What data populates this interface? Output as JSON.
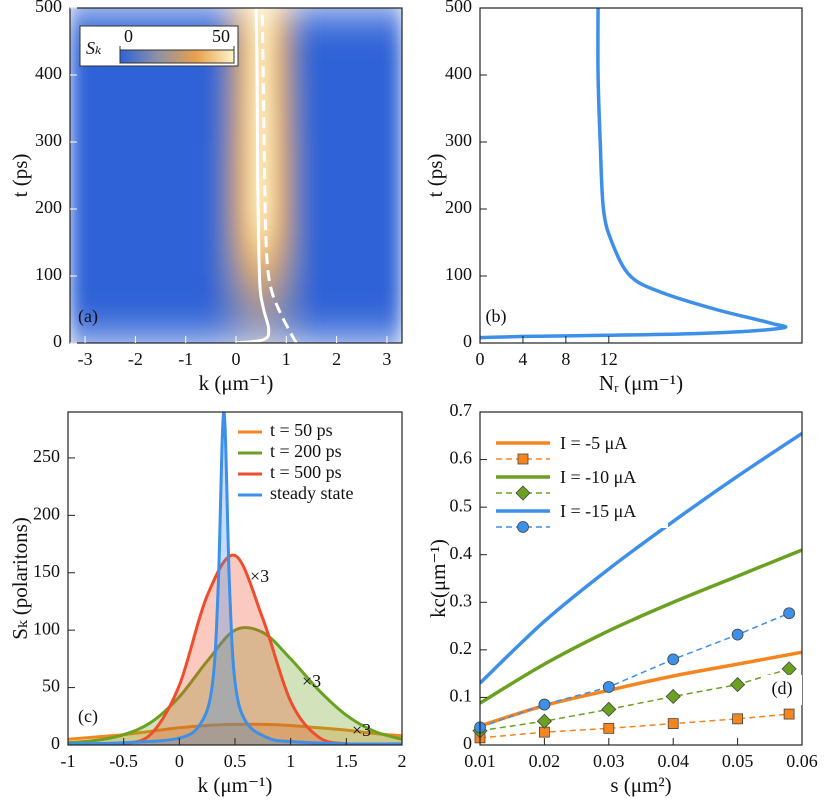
{
  "chart_data": [
    {
      "type": "heatmap",
      "label": "(a)",
      "x_label": "k (μm⁻¹)",
      "y_label": "t (ps)",
      "xlim": [
        -3.3,
        3.3
      ],
      "ylim": [
        0,
        500
      ],
      "xticks": [
        -3,
        -2,
        -1,
        0,
        1,
        2,
        3
      ],
      "yticks": [
        0,
        100,
        200,
        300,
        400,
        500
      ],
      "colorbar_label": "Sₖ",
      "clim": [
        0,
        50
      ],
      "colorbar_ticks": [
        0,
        50
      ],
      "colormap": [
        "#2f62d6",
        "#8e92a6",
        "#e8a04c",
        "#fff4c8"
      ],
      "x": [
        -0.3,
        -0.1,
        0.1,
        0.3,
        0.5,
        0.7,
        0.9,
        1.1,
        1.3
      ],
      "y": [
        25,
        75,
        125,
        175,
        225,
        275,
        325,
        375,
        425,
        475
      ],
      "z": [
        [
          3,
          5,
          8,
          10,
          12,
          10,
          8,
          6,
          4
        ],
        [
          6,
          10,
          16,
          22,
          25,
          22,
          16,
          10,
          6
        ],
        [
          8,
          15,
          25,
          35,
          40,
          35,
          25,
          15,
          8
        ],
        [
          8,
          18,
          32,
          45,
          50,
          45,
          32,
          18,
          8
        ],
        [
          8,
          18,
          32,
          45,
          50,
          45,
          32,
          18,
          8
        ],
        [
          8,
          18,
          32,
          45,
          50,
          45,
          32,
          18,
          8
        ],
        [
          7,
          17,
          31,
          45,
          50,
          45,
          31,
          17,
          7
        ],
        [
          7,
          17,
          31,
          45,
          50,
          44,
          31,
          17,
          7
        ],
        [
          6,
          16,
          30,
          44,
          50,
          44,
          30,
          16,
          6
        ],
        [
          6,
          16,
          30,
          44,
          50,
          44,
          30,
          16,
          6
        ]
      ],
      "lines": [
        {
          "style": "solid",
          "color": "#ffffff",
          "x": [
            0.0,
            0.55,
            0.65,
            0.55,
            0.48,
            0.45,
            0.43,
            0.42,
            0.4
          ],
          "y": [
            0,
            5,
            20,
            50,
            80,
            150,
            250,
            400,
            500
          ]
        },
        {
          "style": "dashed",
          "color": "#ffffff",
          "x": [
            1.2,
            1.05,
            0.85,
            0.7,
            0.62,
            0.58,
            0.55,
            0.52
          ],
          "y": [
            0,
            20,
            50,
            80,
            120,
            200,
            350,
            500
          ]
        }
      ]
    },
    {
      "type": "line",
      "label": "(b)",
      "x_label": "Nᵣ (μm⁻¹)",
      "y_label": "t (ps)",
      "xlim": [
        0,
        30
      ],
      "ylim": [
        0,
        500
      ],
      "xticks": [
        0,
        4,
        8,
        12
      ],
      "yticks": [
        0,
        100,
        200,
        300,
        400,
        500
      ],
      "series": [
        {
          "color": "#3d8fe8",
          "x": [
            11,
            11,
            11.2,
            11.5,
            12.3,
            14,
            17,
            22,
            27,
            28,
            20,
            5,
            0
          ],
          "values": [
            500,
            400,
            300,
            200,
            150,
            100,
            75,
            50,
            30,
            22,
            14,
            10,
            8
          ]
        }
      ]
    },
    {
      "type": "area",
      "label": "(c)",
      "x_label": "k (μm⁻¹)",
      "y_label": "Sₖ (polaritons)",
      "xlim": [
        -1,
        2
      ],
      "ylim": [
        0,
        290
      ],
      "xticks": [
        -1,
        -0.5,
        0,
        0.5,
        1,
        1.5,
        2
      ],
      "yticks": [
        0,
        50,
        100,
        150,
        200,
        250
      ],
      "series": [
        {
          "name": "t = 50 ps",
          "color": "#f4861f",
          "x": [
            -1,
            -0.75,
            -0.5,
            -0.25,
            0,
            0.25,
            0.5,
            0.75,
            1,
            1.25,
            1.5,
            1.75,
            2
          ],
          "values": [
            5,
            7,
            9,
            12,
            15,
            17,
            18,
            18,
            17,
            15,
            13,
            10,
            8
          ]
        },
        {
          "name": "t = 200 ps",
          "color": "#6aa121",
          "x": [
            -1,
            -0.75,
            -0.5,
            -0.25,
            0,
            0.25,
            0.5,
            0.75,
            1,
            1.25,
            1.5,
            1.75,
            2
          ],
          "values": [
            2,
            4,
            9,
            20,
            42,
            73,
            100,
            98,
            75,
            48,
            26,
            12,
            5
          ]
        },
        {
          "name": "t = 500 ps",
          "color": "#ee4e2e",
          "x": [
            -1,
            -0.75,
            -0.5,
            -0.25,
            0,
            0.25,
            0.5,
            0.75,
            1,
            1.25,
            1.5,
            1.75,
            2
          ],
          "values": [
            0,
            0,
            1,
            10,
            52,
            130,
            165,
            110,
            38,
            7,
            1,
            0,
            0
          ]
        },
        {
          "name": "steady state",
          "color": "#3d8fe8",
          "x": [
            -1,
            -0.5,
            0,
            0.2,
            0.3,
            0.35,
            0.4,
            0.45,
            0.5,
            0.6,
            0.8,
            1,
            1.5,
            2
          ],
          "values": [
            1,
            2,
            6,
            20,
            55,
            140,
            290,
            140,
            55,
            20,
            6,
            3,
            1,
            1
          ]
        }
      ],
      "annotations": [
        "×3",
        "×3",
        "×3"
      ]
    },
    {
      "type": "line",
      "label": "(d)",
      "x_label": "s (μm²)",
      "y_label": "kc(μm⁻¹)",
      "xlim": [
        0.01,
        0.06
      ],
      "ylim": [
        0,
        0.7
      ],
      "xticks": [
        0.01,
        0.02,
        0.03,
        0.04,
        0.05,
        0.06
      ],
      "yticks": [
        0,
        0.1,
        0.2,
        0.3,
        0.4,
        0.5,
        0.6,
        0.7
      ],
      "series": [
        {
          "name": "I = -5 μA",
          "color": "#f4861f",
          "marker": "square",
          "x": [
            0.01,
            0.02,
            0.03,
            0.04,
            0.05,
            0.06
          ],
          "values": [
            0.04,
            0.083,
            0.115,
            0.145,
            0.17,
            0.195
          ],
          "points_x": [
            0.01,
            0.02,
            0.03,
            0.04,
            0.05,
            0.058
          ],
          "points": [
            0.015,
            0.027,
            0.035,
            0.045,
            0.055,
            0.065
          ]
        },
        {
          "name": "I = -10 μA",
          "color": "#6aa121",
          "marker": "diamond",
          "x": [
            0.01,
            0.02,
            0.03,
            0.04,
            0.05,
            0.06
          ],
          "values": [
            0.088,
            0.17,
            0.24,
            0.3,
            0.355,
            0.41
          ],
          "points_x": [
            0.01,
            0.02,
            0.03,
            0.04,
            0.05,
            0.058
          ],
          "points": [
            0.03,
            0.05,
            0.075,
            0.102,
            0.127,
            0.16
          ]
        },
        {
          "name": "I = -15 μA",
          "color": "#3d8fe8",
          "marker": "circle",
          "x": [
            0.01,
            0.02,
            0.03,
            0.04,
            0.05,
            0.06
          ],
          "values": [
            0.13,
            0.26,
            0.37,
            0.47,
            0.565,
            0.655
          ],
          "points_x": [
            0.01,
            0.02,
            0.03,
            0.04,
            0.05,
            0.058
          ],
          "points": [
            0.037,
            0.085,
            0.122,
            0.18,
            0.232,
            0.277
          ]
        }
      ]
    }
  ]
}
